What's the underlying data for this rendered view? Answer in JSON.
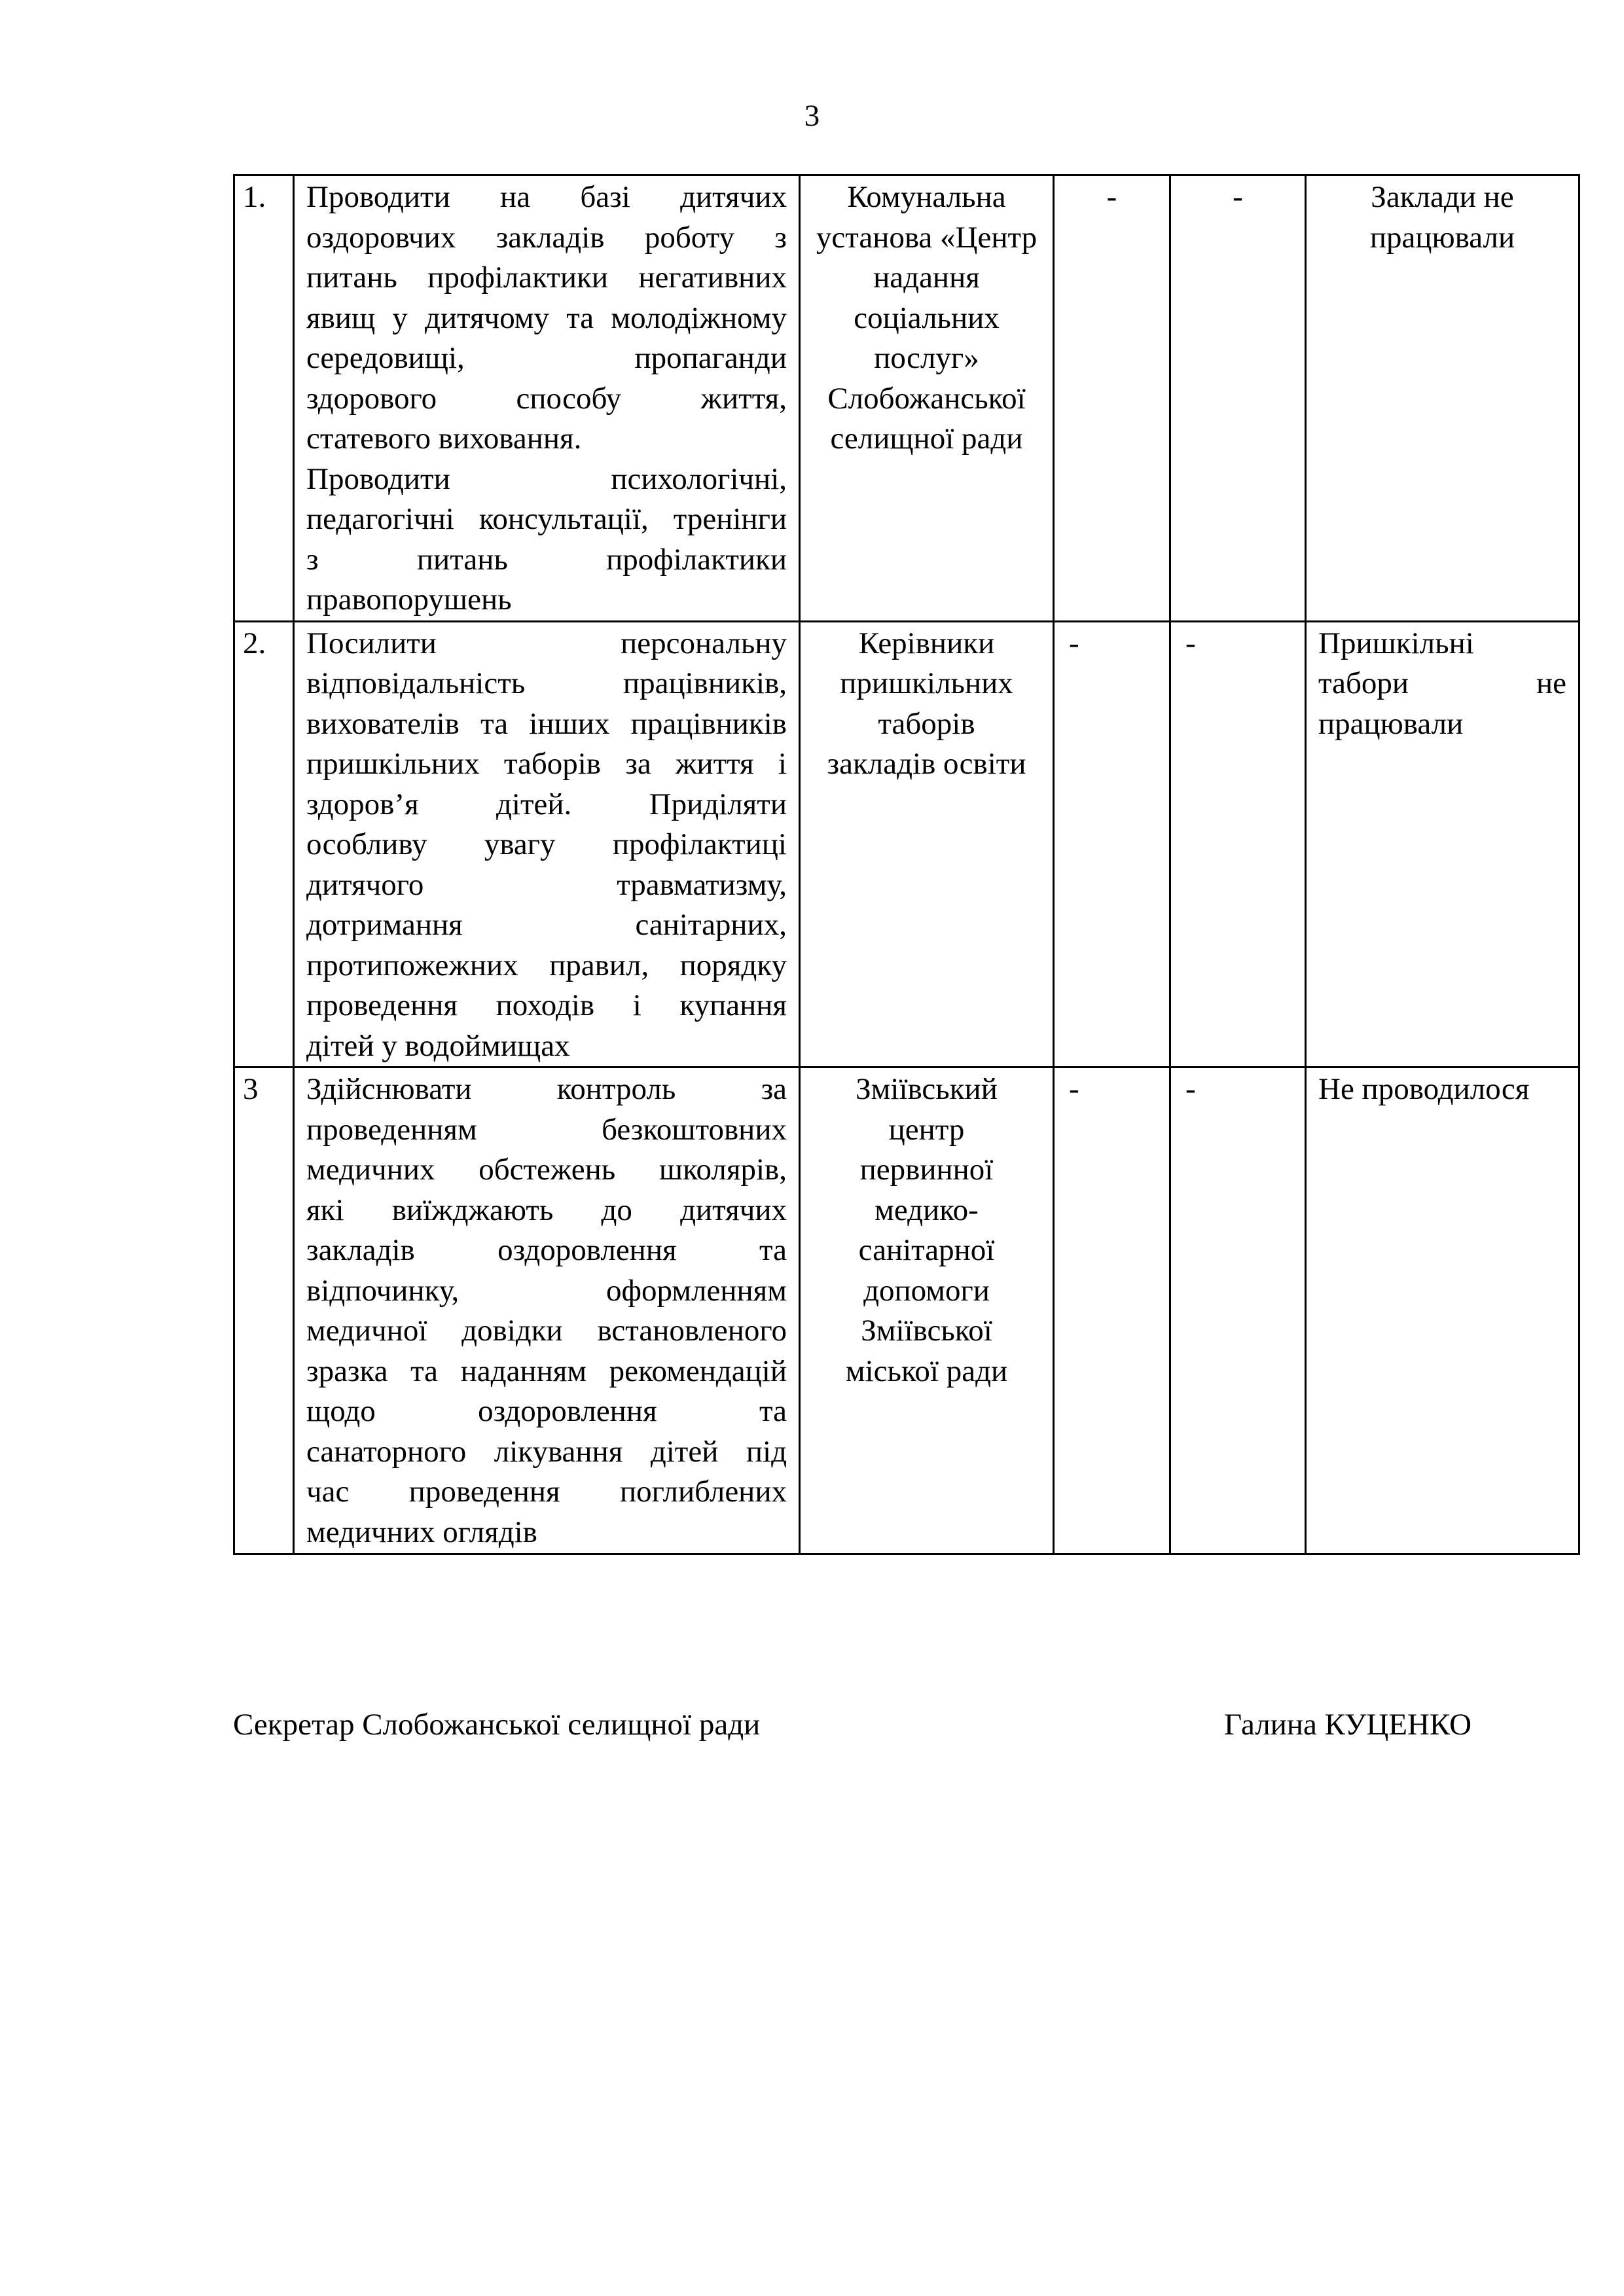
{
  "page_number": "3",
  "rows": [
    {
      "num": "1.",
      "measure_paragraphs": [
        [
          "Проводити на базі дитячих",
          "оздоровчих закладів роботу з",
          "питань профілактики негативних",
          "явищ у дитячому та молодіжному",
          "середовищі, пропаганди",
          "здорового способу життя,",
          "статевого виховання."
        ],
        [
          "Проводити психологічні,",
          "педагогічні консультації, тренінги",
          "з питань профілактики",
          "правопорушень"
        ]
      ],
      "executor_lines": [
        "Комунальна",
        "установа «Центр",
        "надання",
        "соціальних",
        "послуг»",
        "Слобожанської",
        "селищної ради"
      ],
      "col4": "-",
      "col5": "-",
      "result_lines": [
        "Заклади не",
        "працювали"
      ],
      "result_align": "center"
    },
    {
      "num": "2.",
      "measure_paragraphs": [
        [
          "Посилити персональну",
          "відповідальність працівників,",
          "вихователів та інших працівників",
          "пришкільних таборів за життя і",
          "здоров’я дітей. Приділяти",
          "особливу увагу профілактиці",
          "дитячого травматизму,",
          "дотримання санітарних,",
          "протипожежних правил, порядку",
          "проведення походів і купання",
          "дітей у водоймищах"
        ]
      ],
      "executor_lines": [
        "Керівники",
        "пришкільних",
        "таборів",
        "закладів освіти"
      ],
      "col4": "-",
      "col5": "-",
      "result_lines": [
        "Пришкільні",
        "табори не",
        "працювали"
      ],
      "result_align": "justify"
    },
    {
      "num": "3",
      "measure_paragraphs": [
        [
          "Здійснювати контроль за",
          "проведенням безкоштовних",
          "медичних обстежень школярів,",
          "які виїжджають до дитячих",
          "закладів оздоровлення та",
          "відпочинку, оформленням",
          "медичної довідки встановленого",
          "зразка та наданням рекомендацій",
          "щодо оздоровлення та",
          "санаторного лікування дітей під",
          "час проведення поглиблених",
          "медичних оглядів"
        ]
      ],
      "executor_lines": [
        "Зміївський",
        "центр",
        "первинної",
        "медико-",
        "санітарної",
        "допомоги",
        "Зміївської",
        "міської ради"
      ],
      "col4": "-",
      "col5": "-",
      "result_lines": [
        "Не проводилося"
      ],
      "result_align": "left"
    }
  ],
  "signature": {
    "position": "Секретар Слобожанської селищної ради",
    "name": "Галина КУЦЕНКО"
  }
}
